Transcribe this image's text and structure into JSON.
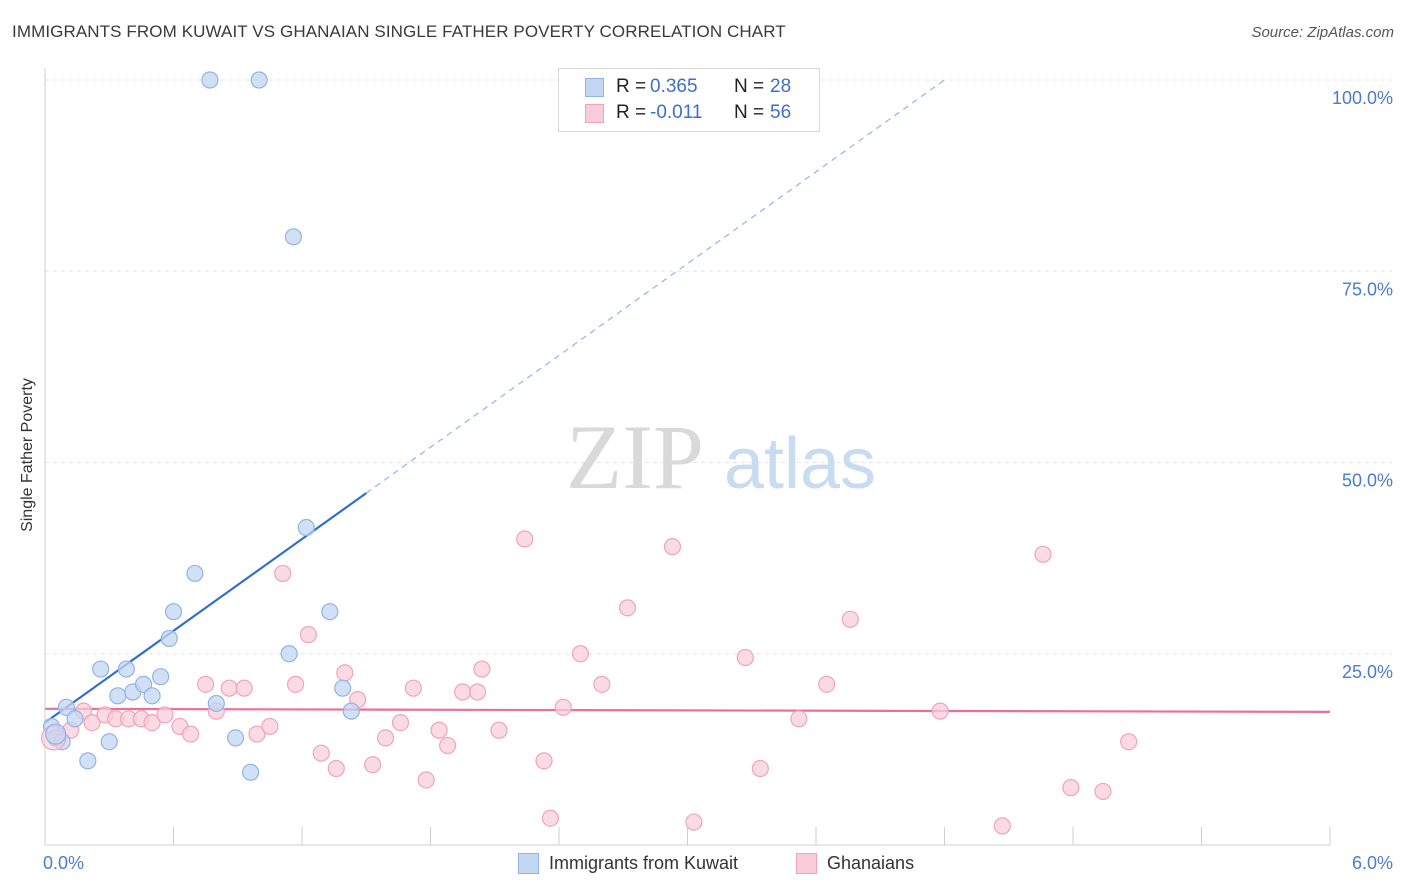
{
  "chart_data": {
    "type": "scatter",
    "title": "IMMIGRANTS FROM KUWAIT VS GHANAIAN SINGLE FATHER POVERTY CORRELATION CHART",
    "source": "Source: ZipAtlas.com",
    "xlabel": "",
    "ylabel": "Single Father Poverty",
    "xlim": [
      0,
      6
    ],
    "ylim": [
      0,
      100
    ],
    "x_tick_labels": [
      "0.0%",
      "6.0%"
    ],
    "y_ticks": [
      25,
      50,
      75,
      100
    ],
    "y_tick_labels": [
      "25.0%",
      "50.0%",
      "75.0%",
      "100.0%"
    ],
    "watermark": {
      "zip": "ZIP",
      "atlas": "atlas"
    },
    "legend": {
      "rows": [
        {
          "r_label": "R =",
          "r_value": "0.365",
          "n_label": "N =",
          "n_value": "28"
        },
        {
          "r_label": "R =",
          "r_value": "-0.011",
          "n_label": "N =",
          "n_value": "56"
        }
      ]
    },
    "series": [
      {
        "name": "Immigrants from Kuwait",
        "color": "#8fb4ea",
        "fill": "#c3d6f2",
        "line_color": "#2f6fcc",
        "trend": {
          "x0": 0.0,
          "y0": 16.0,
          "x1": 1.5,
          "y1": 46.0,
          "dash_to_x": 4.2,
          "dash_to_y": 100.0
        },
        "points": [
          [
            0.03,
            15.5
          ],
          [
            0.05,
            14.0
          ],
          [
            0.08,
            13.5
          ],
          [
            0.1,
            18.0
          ],
          [
            0.14,
            16.5
          ],
          [
            0.2,
            11.0
          ],
          [
            0.26,
            23.0
          ],
          [
            0.3,
            13.5
          ],
          [
            0.34,
            19.5
          ],
          [
            0.38,
            23.0
          ],
          [
            0.41,
            20.0
          ],
          [
            0.46,
            21.0
          ],
          [
            0.5,
            19.5
          ],
          [
            0.54,
            22.0
          ],
          [
            0.58,
            27.0
          ],
          [
            0.6,
            30.5
          ],
          [
            0.7,
            35.5
          ],
          [
            0.77,
            100.0
          ],
          [
            0.8,
            18.5
          ],
          [
            0.89,
            14.0
          ],
          [
            0.96,
            9.5
          ],
          [
            1.0,
            100.0
          ],
          [
            1.14,
            25.0
          ],
          [
            1.16,
            79.5
          ],
          [
            1.22,
            41.5
          ],
          [
            1.33,
            30.5
          ],
          [
            1.39,
            20.5
          ],
          [
            1.43,
            17.5
          ]
        ]
      },
      {
        "name": "Ghanaians",
        "color": "#f1a3bb",
        "fill": "#f8cdd9",
        "line_color": "#e8709a",
        "trend": {
          "x0": 0.0,
          "y0": 17.8,
          "x1": 6.0,
          "y1": 17.4
        },
        "points": [
          [
            0.05,
            14.0
          ],
          [
            0.12,
            15.0
          ],
          [
            0.18,
            17.5
          ],
          [
            0.22,
            16.0
          ],
          [
            0.28,
            17.0
          ],
          [
            0.33,
            16.5
          ],
          [
            0.39,
            16.5
          ],
          [
            0.45,
            16.5
          ],
          [
            0.5,
            16.0
          ],
          [
            0.56,
            17.0
          ],
          [
            0.63,
            15.5
          ],
          [
            0.68,
            14.5
          ],
          [
            0.75,
            21.0
          ],
          [
            0.8,
            17.5
          ],
          [
            0.86,
            20.5
          ],
          [
            0.93,
            20.5
          ],
          [
            0.99,
            14.5
          ],
          [
            1.05,
            15.5
          ],
          [
            1.11,
            35.5
          ],
          [
            1.17,
            21.0
          ],
          [
            1.23,
            27.5
          ],
          [
            1.29,
            12.0
          ],
          [
            1.36,
            10.0
          ],
          [
            1.4,
            22.5
          ],
          [
            1.46,
            19.0
          ],
          [
            1.53,
            10.5
          ],
          [
            1.59,
            14.0
          ],
          [
            1.66,
            16.0
          ],
          [
            1.72,
            20.5
          ],
          [
            1.78,
            8.5
          ],
          [
            1.84,
            15.0
          ],
          [
            1.88,
            13.0
          ],
          [
            1.95,
            20.0
          ],
          [
            2.02,
            20.0
          ],
          [
            2.04,
            23.0
          ],
          [
            2.12,
            15.0
          ],
          [
            2.24,
            40.0
          ],
          [
            2.33,
            11.0
          ],
          [
            2.36,
            3.5
          ],
          [
            2.42,
            18.0
          ],
          [
            2.5,
            25.0
          ],
          [
            2.6,
            21.0
          ],
          [
            2.72,
            31.0
          ],
          [
            2.93,
            39.0
          ],
          [
            3.03,
            3.0
          ],
          [
            3.27,
            24.5
          ],
          [
            3.34,
            10.0
          ],
          [
            3.52,
            16.5
          ],
          [
            3.65,
            21.0
          ],
          [
            3.76,
            29.5
          ],
          [
            4.18,
            17.5
          ],
          [
            4.47,
            2.5
          ],
          [
            4.66,
            38.0
          ],
          [
            4.79,
            7.5
          ],
          [
            4.94,
            7.0
          ],
          [
            5.06,
            13.5
          ]
        ]
      }
    ]
  }
}
